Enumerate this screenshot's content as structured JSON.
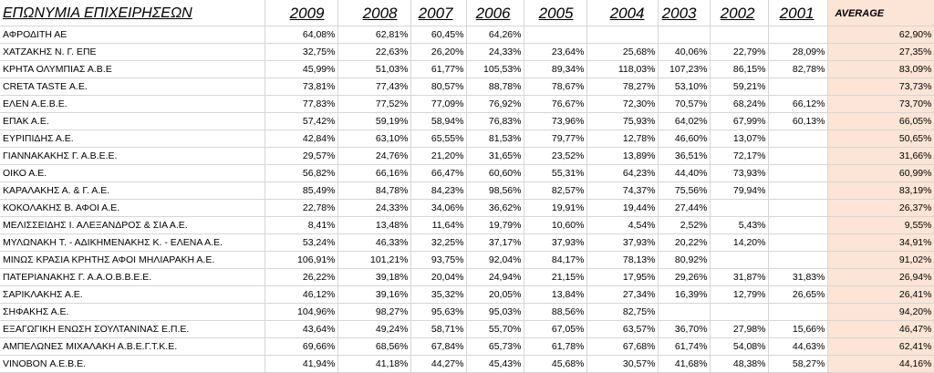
{
  "headers": {
    "name": "ΕΠΩΝΥΜΙΑ ΕΠΙΧΕΙΡΗΣΕΩΝ",
    "years": [
      "2009",
      "2008",
      "2007",
      "2006",
      "2005",
      "2004",
      "2003",
      "2002",
      "2001"
    ],
    "average": "AVERAGE"
  },
  "colors": {
    "average_fill": "#fce4d6",
    "grid": "#d6d6d6"
  },
  "rows": [
    {
      "name": "ΑΦΡΟΔΙΤΗ ΑΕ",
      "values": [
        "64,08%",
        "62,81%",
        "60,45%",
        "64,26%",
        "",
        "",
        "",
        "",
        ""
      ],
      "average": "62,90%"
    },
    {
      "name": "ΧΑΤΖΑΚΗΣ Ν. Γ. ΕΠΕ",
      "values": [
        "32,75%",
        "22,63%",
        "26,20%",
        "24,33%",
        "23,64%",
        "25,68%",
        "40,06%",
        "22,79%",
        "28,09%"
      ],
      "average": "27,35%"
    },
    {
      "name": "ΚΡΗΤΑ ΟΛΥΜΠΙΑΣ Α.Β.Ε",
      "values": [
        "45,99%",
        "51,03%",
        "61,77%",
        "105,53%",
        "89,34%",
        "118,03%",
        "107,23%",
        "86,15%",
        "82,78%"
      ],
      "average": "83,09%"
    },
    {
      "name": "CRETA TASTE Α.Ε.",
      "values": [
        "73,81%",
        "77,43%",
        "80,57%",
        "88,78%",
        "78,67%",
        "78,27%",
        "53,10%",
        "59,21%",
        ""
      ],
      "average": "73,73%"
    },
    {
      "name": "ΕΛΕΝ Α.Ε.Β.Ε.",
      "values": [
        "77,83%",
        "77,52%",
        "77,09%",
        "76,92%",
        "76,67%",
        "72,30%",
        "70,57%",
        "68,24%",
        "66,12%"
      ],
      "average": "73,70%"
    },
    {
      "name": "ΕΠΑΚ Α.Ε.",
      "values": [
        "57,42%",
        "59,19%",
        "58,94%",
        "76,83%",
        "73,96%",
        "75,93%",
        "64,02%",
        "67,99%",
        "60,13%"
      ],
      "average": "66,05%"
    },
    {
      "name": "ΕΥΡΙΠΙΔΗΣ Α.Ε.",
      "values": [
        "42,84%",
        "63,10%",
        "65,55%",
        "81,53%",
        "79,77%",
        "12,78%",
        "46,60%",
        "13,07%",
        ""
      ],
      "average": "50,65%"
    },
    {
      "name": "ΓΙΑΝΝΑΚΑΚΗΣ Γ. Α.Β.Ε.Ε.",
      "values": [
        "29,57%",
        "24,76%",
        "21,20%",
        "31,65%",
        "23,52%",
        "13,89%",
        "36,51%",
        "72,17%",
        ""
      ],
      "average": "31,66%"
    },
    {
      "name": "ΟΙΚΟ Α.Ε.",
      "values": [
        "56,82%",
        "66,16%",
        "66,47%",
        "60,60%",
        "55,31%",
        "64,23%",
        "44,40%",
        "73,93%",
        ""
      ],
      "average": "60,99%"
    },
    {
      "name": "ΚΑΡΑΛΑΚΗΣ Α. & Γ. Α.Ε.",
      "values": [
        "85,49%",
        "84,78%",
        "84,23%",
        "98,56%",
        "82,57%",
        "74,37%",
        "75,56%",
        "79,94%",
        ""
      ],
      "average": "83,19%"
    },
    {
      "name": "ΚΟΚΟΛΑΚΗΣ Β. ΑΦΟΙ Α.Ε.",
      "values": [
        "22,78%",
        "24,33%",
        "34,06%",
        "36,62%",
        "19,91%",
        "19,44%",
        "27,44%",
        "",
        ""
      ],
      "average": "26,37%"
    },
    {
      "name": "ΜΕΛΙΣΣΕΙΔΗΣ Ι. ΑΛΕΞΑΝΔΡΟΣ & ΣΙΑ Α.Ε.",
      "values": [
        "8,41%",
        "13,48%",
        "11,64%",
        "19,79%",
        "10,60%",
        "4,54%",
        "2,52%",
        "5,43%",
        ""
      ],
      "average": "9,55%"
    },
    {
      "name": "ΜΥΛΩΝΑΚΗ Τ. - ΑΔΙΚΗΜΕΝΑΚΗΣ Κ. - ΕΛΕΝΑ Α.Ε.",
      "values": [
        "53,24%",
        "46,33%",
        "32,25%",
        "37,17%",
        "37,93%",
        "37,93%",
        "20,22%",
        "14,20%",
        ""
      ],
      "average": "34,91%"
    },
    {
      "name": "ΜΙΝΩΣ ΚΡΑΣΙΑ ΚΡΗΤΗΣ ΑΦΟΙ ΜΗΛΙΑΡΑΚΗ Α.Ε.",
      "values": [
        "106,91%",
        "101,21%",
        "93,75%",
        "92,04%",
        "84,17%",
        "78,13%",
        "80,92%",
        "",
        ""
      ],
      "average": "91,02%"
    },
    {
      "name": "ΠΑΤΕΡΙΑΝΑΚΗΣ Γ. Α.Α.Ο.Β.Β.Ε.Ε.",
      "values": [
        "26,22%",
        "39,18%",
        "20,04%",
        "24,94%",
        "21,15%",
        "17,95%",
        "29,26%",
        "31,87%",
        "31,83%"
      ],
      "average": "26,94%"
    },
    {
      "name": "ΣΑΡΙΚΛΑΚΗΣ Α.Ε.",
      "values": [
        "46,12%",
        "39,16%",
        "35,32%",
        "20,05%",
        "13,84%",
        "27,34%",
        "16,39%",
        "12,79%",
        "26,65%"
      ],
      "average": "26,41%"
    },
    {
      "name": "ΣΗΦΑΚΗΣ Α.Ε.",
      "values": [
        "104,96%",
        "98,27%",
        "95,63%",
        "95,03%",
        "88,56%",
        "82,75%",
        "",
        "",
        ""
      ],
      "average": "94,20%"
    },
    {
      "name": "ΕΞΑΓΩΓΙΚΗ ΕΝΩΣΗ ΣΟΥΛΤΑΝΙΝΑΣ Ε.Π.Ε.",
      "values": [
        "43,64%",
        "49,24%",
        "58,71%",
        "55,70%",
        "67,05%",
        "63,57%",
        "36,70%",
        "27,98%",
        "15,66%"
      ],
      "average": "46,47%"
    },
    {
      "name": "ΑΜΠΕΛΩΝΕΣ ΜΙΧΑΛΑΚΗ Α.Β.Ε.Γ.Τ.Κ.Ε.",
      "values": [
        "69,66%",
        "68,56%",
        "67,84%",
        "65,73%",
        "61,78%",
        "67,68%",
        "61,74%",
        "54,08%",
        "44,63%"
      ],
      "average": "62,41%"
    },
    {
      "name": "VINOBON Α.Ε.Β.Ε.",
      "values": [
        "41,94%",
        "41,18%",
        "44,27%",
        "45,43%",
        "45,68%",
        "30,57%",
        "41,68%",
        "48,38%",
        "58,27%"
      ],
      "average": "44,16%"
    }
  ]
}
